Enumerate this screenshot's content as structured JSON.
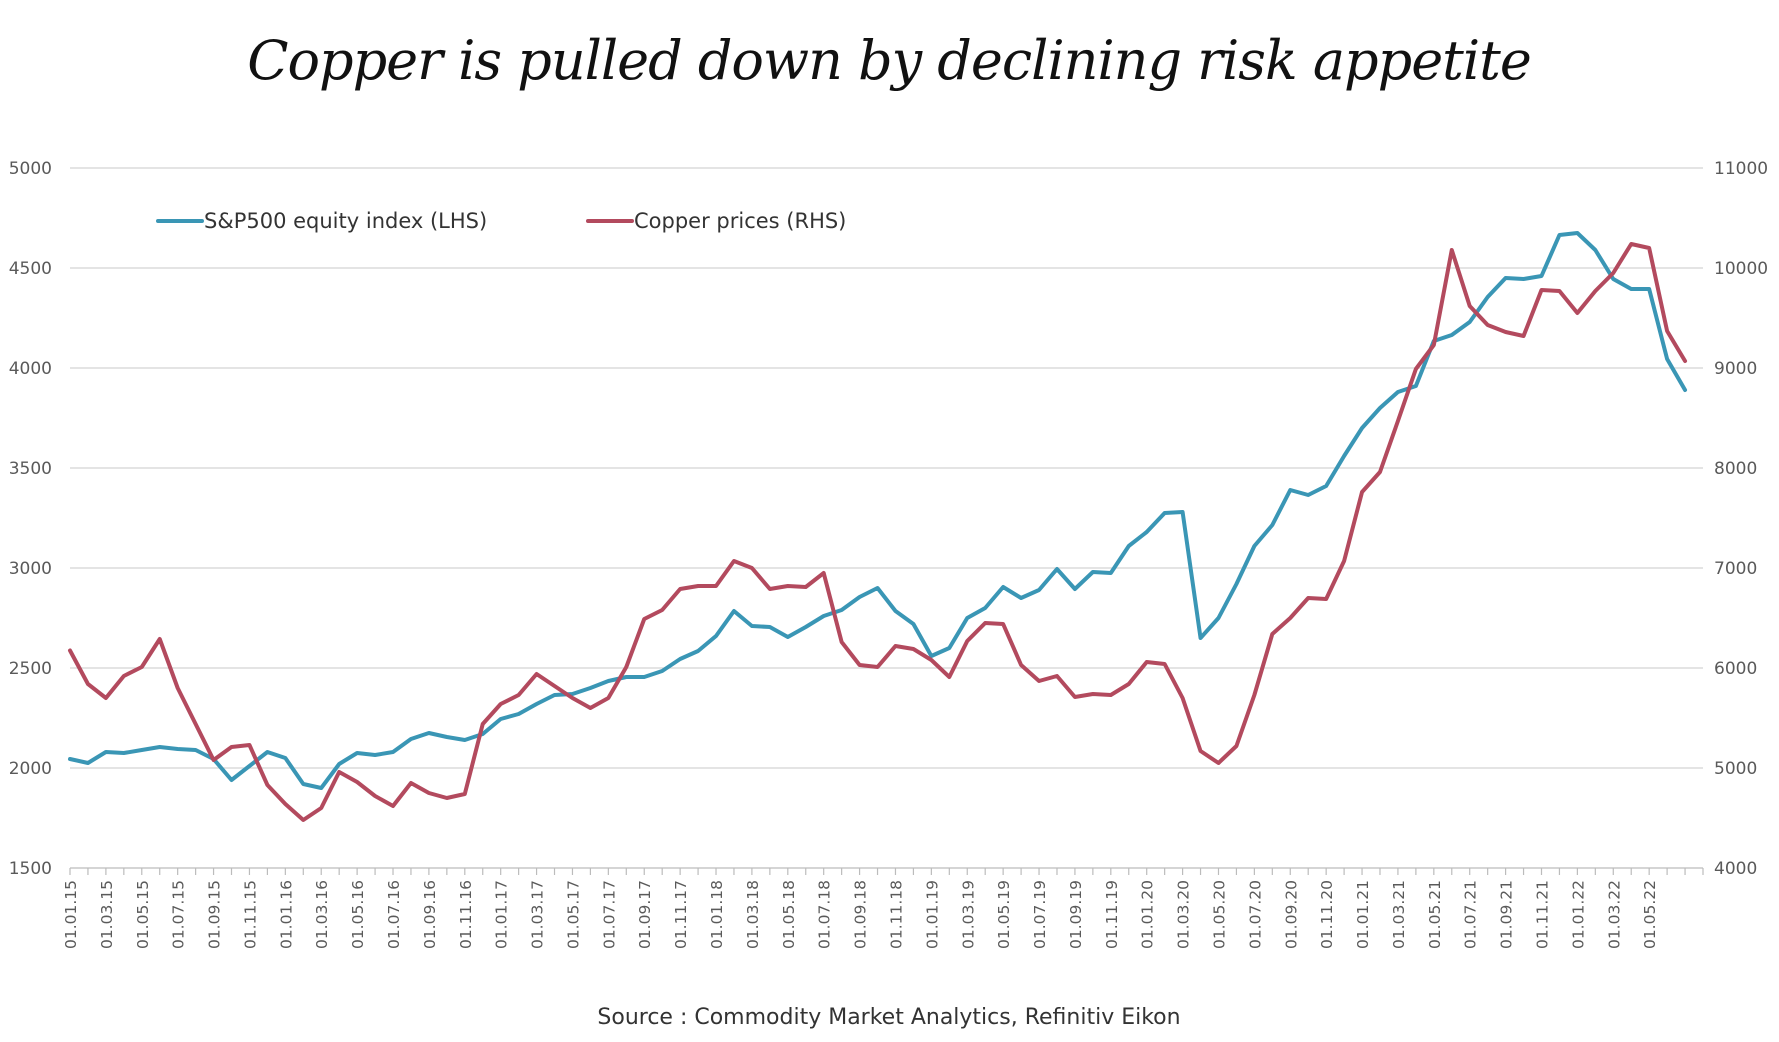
{
  "chart_data": {
    "type": "line",
    "title": "Copper is pulled down by declining risk appetite",
    "source": "Source : Commodity Market Analytics, Refinitiv Eikon",
    "y_left": {
      "min": 1500,
      "max": 5000,
      "step": 500,
      "ticks": [
        "1500",
        "2000",
        "2500",
        "3000",
        "3500",
        "4000",
        "4500",
        "5000"
      ]
    },
    "y_right": {
      "min": 4000,
      "max": 11000,
      "step": 1000,
      "ticks": [
        "4000",
        "5000",
        "6000",
        "7000",
        "8000",
        "9000",
        "10000",
        "11000"
      ]
    },
    "x_tick_labels": [
      "01.01.15",
      "01.03.15",
      "01.05.15",
      "01.07.15",
      "01.09.15",
      "01.11.15",
      "01.01.16",
      "01.03.16",
      "01.05.16",
      "01.07.16",
      "01.09.16",
      "01.11.16",
      "01.01.17",
      "01.03.17",
      "01.05.17",
      "01.07.17",
      "01.09.17",
      "01.11.17",
      "01.01.18",
      "01.03.18",
      "01.05.18",
      "01.07.18",
      "01.09.18",
      "01.11.18",
      "01.01.19",
      "01.03.19",
      "01.05.19",
      "01.07.19",
      "01.09.19",
      "01.11.19",
      "01.01.20",
      "01.03.20",
      "01.05.20",
      "01.07.20",
      "01.09.20",
      "01.11.20",
      "01.01.21",
      "01.03.21",
      "01.05.21",
      "01.07.21",
      "01.09.21",
      "01.11.21",
      "01.01.22",
      "01.03.22",
      "01.05.22"
    ],
    "legend_position": "top-left",
    "grid": true,
    "series": [
      {
        "name": "S&P500 equity index (LHS)",
        "axis": "left",
        "color": "#3a96b5",
        "values": [
          2045,
          2025,
          2080,
          2075,
          2090,
          2105,
          2095,
          2090,
          2045,
          1940,
          2010,
          2080,
          2050,
          1920,
          1900,
          2020,
          2075,
          2065,
          2080,
          2145,
          2175,
          2155,
          2140,
          2170,
          2245,
          2270,
          2320,
          2365,
          2370,
          2400,
          2435,
          2455,
          2455,
          2485,
          2545,
          2585,
          2660,
          2785,
          2710,
          2705,
          2655,
          2705,
          2760,
          2790,
          2855,
          2900,
          2785,
          2720,
          2560,
          2600,
          2750,
          2800,
          2905,
          2850,
          2890,
          2995,
          2895,
          2980,
          2975,
          3110,
          3180,
          3275,
          3280,
          2650,
          2750,
          2920,
          3110,
          3215,
          3390,
          3365,
          3410,
          3560,
          3700,
          3800,
          3880,
          3910,
          4135,
          4165,
          4230,
          4355,
          4450,
          4445,
          4460,
          4665,
          4675,
          4590,
          4445,
          4395,
          4395,
          4045,
          3890
        ]
      },
      {
        "name": "Copper prices (RHS)",
        "axis": "right",
        "color": "#b34a5e",
        "values": [
          6175,
          5840,
          5700,
          5920,
          6010,
          6290,
          5800,
          5440,
          5080,
          5210,
          5230,
          4830,
          4640,
          4480,
          4600,
          4960,
          4860,
          4720,
          4620,
          4850,
          4750,
          4700,
          4740,
          5440,
          5640,
          5730,
          5940,
          5820,
          5700,
          5600,
          5700,
          6010,
          6490,
          6580,
          6790,
          6820,
          6820,
          7070,
          7000,
          6790,
          6820,
          6810,
          6950,
          6260,
          6030,
          6010,
          6220,
          6190,
          6080,
          5910,
          6270,
          6450,
          6440,
          6030,
          5870,
          5920,
          5710,
          5740,
          5730,
          5840,
          6060,
          6040,
          5700,
          5170,
          5050,
          5220,
          5730,
          6340,
          6500,
          6700,
          6690,
          7070,
          7760,
          7960,
          8470,
          8990,
          9230,
          10180,
          9620,
          9430,
          9360,
          9320,
          9780,
          9770,
          9550,
          9770,
          9950,
          10240,
          10200,
          9370,
          9070
        ]
      }
    ]
  }
}
